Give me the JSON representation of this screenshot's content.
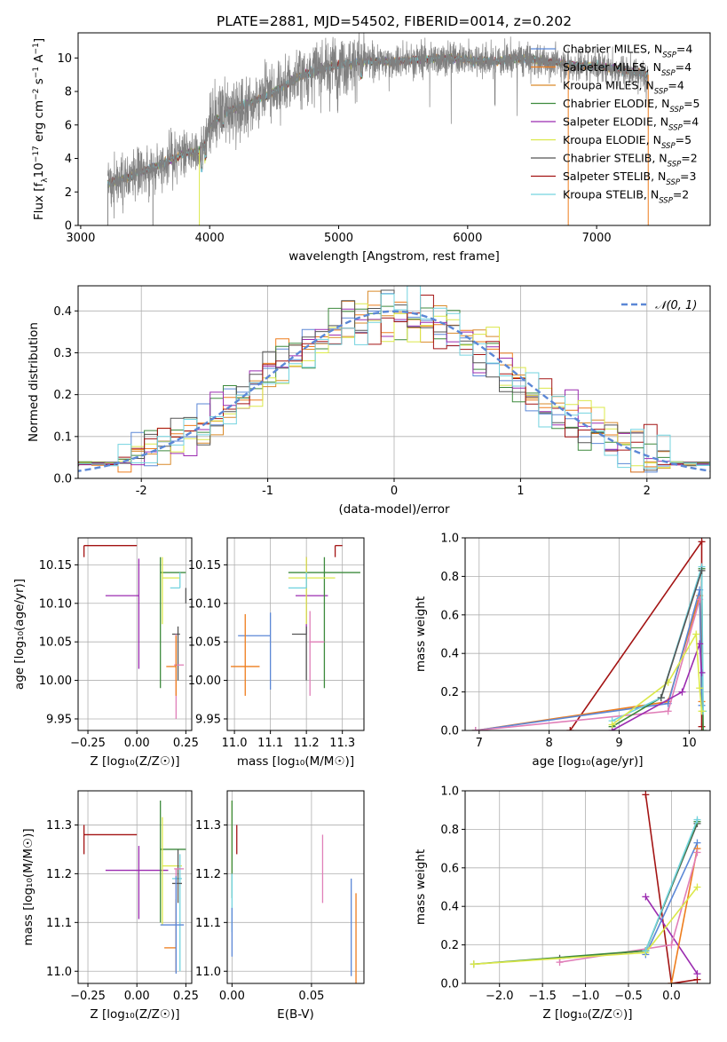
{
  "figure": {
    "title": "PLATE=2881, MJD=54502, FIBERID=0014, z=0.202"
  },
  "colors": {
    "Chabrier MILES": "#5b87d6",
    "Salpeter MILES": "#ee7d1d",
    "Kroupa MILES": "#d98a2a",
    "Chabrier ELODIE": "#3d8a3d",
    "Salpeter ELODIE": "#9b2bb0",
    "Kroupa ELODIE": "#dbe84a",
    "Chabrier STELIB": "#555555",
    "Salpeter STELIB": "#a31313",
    "Kroupa STELIB": "#73d3df",
    "Pink": "#e07fb8",
    "Normal curve": "#5b87d6"
  },
  "chart_data": [
    {
      "id": "spectrum",
      "type": "line",
      "title": "PLATE=2881, MJD=54502, FIBERID=0014, z=0.202",
      "xlabel": "wavelength [Angstrom, rest frame]",
      "ylabel_parts": [
        "Flux [f",
        "λ",
        "10",
        "−17",
        " erg cm",
        "−2",
        " s",
        "−1",
        " A",
        "−1",
        "]"
      ],
      "xlim": [
        2980,
        7880
      ],
      "ylim": [
        0,
        11.5
      ],
      "xticks": [
        3000,
        4000,
        5000,
        6000,
        7000
      ],
      "yticks": [
        0,
        2,
        4,
        6,
        8,
        10
      ],
      "legend_position": "upper-right",
      "legend": [
        {
          "label": "Chabrier MILES, N",
          "sub": "SSP",
          "suffix": "=4",
          "color": "#5b87d6"
        },
        {
          "label": "Salpeter MILES, N",
          "sub": "SSP",
          "suffix": "=4",
          "color": "#ee7d1d"
        },
        {
          "label": "Kroupa MILES, N",
          "sub": "SSP",
          "suffix": "=4",
          "color": "#d98a2a"
        },
        {
          "label": "Chabrier ELODIE, N",
          "sub": "SSP",
          "suffix": "=5",
          "color": "#3d8a3d"
        },
        {
          "label": "Salpeter ELODIE, N",
          "sub": "SSP",
          "suffix": "=4",
          "color": "#9b2bb0"
        },
        {
          "label": "Kroupa ELODIE, N",
          "sub": "SSP",
          "suffix": "=5",
          "color": "#dbe84a"
        },
        {
          "label": "Chabrier STELIB, N",
          "sub": "SSP",
          "suffix": "=2",
          "color": "#555555"
        },
        {
          "label": "Salpeter STELIB, N",
          "sub": "SSP",
          "suffix": "=3",
          "color": "#a31313"
        },
        {
          "label": "Kroupa STELIB, N",
          "sub": "SSP",
          "suffix": "=2",
          "color": "#73d3df"
        }
      ],
      "data_color": "#808080",
      "continuum": {
        "x": [
          3210,
          3300,
          3400,
          3500,
          3600,
          3700,
          3800,
          3900,
          3950,
          4000,
          4100,
          4200,
          4300,
          4400,
          4500,
          4600,
          4700,
          4800,
          4900,
          5000,
          5200,
          5400,
          5600,
          5800,
          6000,
          6200,
          6400,
          6600,
          6800,
          7000,
          7200,
          7400
        ],
        "y": [
          2.5,
          2.7,
          3.0,
          3.3,
          3.6,
          3.9,
          4.3,
          4.4,
          4.6,
          5.9,
          6.6,
          7.0,
          7.3,
          7.6,
          8.0,
          8.4,
          8.9,
          9.2,
          9.4,
          9.6,
          9.8,
          9.8,
          9.9,
          10.0,
          9.9,
          9.8,
          10.0,
          9.8,
          9.6,
          9.5,
          9.3,
          9.0
        ]
      }
    },
    {
      "id": "residuals",
      "type": "step",
      "xlabel": "(data-model)/error",
      "ylabel": "Normed distribution",
      "xlim": [
        -2.5,
        2.5
      ],
      "ylim": [
        0,
        0.46
      ],
      "xticks": [
        -2,
        -1,
        0,
        1,
        2
      ],
      "yticks": [
        0.0,
        0.1,
        0.2,
        0.3,
        0.4
      ],
      "legend_position": "upper-right",
      "normal_label": "𝒩(0, 1)",
      "normal_curve": {
        "mean": 0,
        "sigma": 1
      }
    },
    {
      "id": "age-vs-Z",
      "type": "errorbar",
      "xlabel": "Z [log₁₀(Z/Z☉)]",
      "ylabel": "age  [log₁₀(age/yr)]",
      "xlim": [
        -0.3,
        0.28
      ],
      "ylim": [
        9.935,
        10.185
      ],
      "xticks": [
        -0.25,
        0.0,
        0.25
      ],
      "xticklabels": [
        "−0.25",
        "0.00",
        "0.25"
      ],
      "yticks": [
        9.95,
        10.0,
        10.05,
        10.1,
        10.15
      ],
      "yticklabels": [
        "9.95",
        "10.00",
        "10.05",
        "10.10",
        "10.15"
      ],
      "points": [
        {
          "x": -0.27,
          "xerr": [
            0,
            0.27
          ],
          "y": 10.175,
          "yerr": [
            0.015,
            0.0
          ],
          "color": "#a31313"
        },
        {
          "x": 0.01,
          "xerr": [
            0.17,
            0.0
          ],
          "y": 10.11,
          "yerr": [
            0.095,
            0.048
          ],
          "color": "#9b2bb0"
        },
        {
          "x": 0.12,
          "xerr": [
            0.0,
            0.13
          ],
          "y": 10.14,
          "yerr": [
            0.15,
            0.02
          ],
          "color": "#3d8a3d"
        },
        {
          "x": 0.13,
          "xerr": [
            0.0,
            0.09
          ],
          "y": 10.133,
          "yerr": [
            0.06,
            0.027
          ],
          "color": "#dbe84a"
        },
        {
          "x": 0.22,
          "xerr": [
            0.05,
            0.0
          ],
          "y": 10.12,
          "yerr": [
            0.0,
            0.02
          ],
          "color": "#73d3df"
        },
        {
          "x": 0.21,
          "xerr": [
            0.03,
            0.01
          ],
          "y": 10.06,
          "yerr": [
            0.06,
            0.01
          ],
          "color": "#555555"
        },
        {
          "x": 0.2,
          "xerr": [
            0.01,
            0.04
          ],
          "y": 10.02,
          "yerr": [
            0.07,
            0.04
          ],
          "color": "#e07fb8"
        },
        {
          "x": 0.2,
          "xerr": [
            0.05,
            0.0
          ],
          "y": 10.018,
          "yerr": [
            0.038,
            0.04
          ],
          "color": "#ee7d1d"
        },
        {
          "x": 0.25,
          "xerr": [
            0.0,
            0.0
          ],
          "y": 10.12,
          "yerr": [
            0.02,
            0.0
          ],
          "color": "#555555"
        }
      ]
    },
    {
      "id": "age-vs-mass",
      "type": "errorbar",
      "xlabel": "mass [log₁₀(M/M☉)]",
      "xlim": [
        10.98,
        11.36
      ],
      "ylim": [
        9.935,
        10.185
      ],
      "xticks": [
        11.0,
        11.1,
        11.2,
        11.3
      ],
      "xticklabels": [
        "11.0",
        "11.1",
        "11.2",
        "11.3"
      ],
      "yticks": [
        9.95,
        10.0,
        10.05,
        10.1,
        10.15
      ],
      "yticklabels": [
        "9.95",
        "10.00",
        "10.05",
        "10.10",
        "10.15"
      ],
      "points": [
        {
          "x": 11.28,
          "xerr": [
            0.0,
            0.02
          ],
          "y": 10.175,
          "yerr": [
            0.015,
            0.0
          ],
          "color": "#a31313"
        },
        {
          "x": 11.2,
          "xerr": [
            0.03,
            0.06
          ],
          "y": 10.11,
          "yerr": [
            0.05,
            0.05
          ],
          "color": "#9b2bb0"
        },
        {
          "x": 11.25,
          "xerr": [
            0.1,
            0.1
          ],
          "y": 10.14,
          "yerr": [
            0.15,
            0.02
          ],
          "color": "#3d8a3d"
        },
        {
          "x": 11.2,
          "xerr": [
            0.05,
            0.08
          ],
          "y": 10.133,
          "yerr": [
            0.06,
            0.027
          ],
          "color": "#dbe84a"
        },
        {
          "x": 11.2,
          "xerr": [
            0.05,
            0.0
          ],
          "y": 10.12,
          "yerr": [
            0.0,
            0.02
          ],
          "color": "#73d3df"
        },
        {
          "x": 11.2,
          "xerr": [
            0.04,
            0.0
          ],
          "y": 10.06,
          "yerr": [
            0.06,
            0.01
          ],
          "color": "#555555"
        },
        {
          "x": 11.1,
          "xerr": [
            0.09,
            0.0
          ],
          "y": 10.058,
          "yerr": [
            0.07,
            0.03
          ],
          "color": "#5b87d6"
        },
        {
          "x": 11.21,
          "xerr": [
            0.0,
            0.04
          ],
          "y": 10.05,
          "yerr": [
            0.07,
            0.04
          ],
          "color": "#e07fb8"
        },
        {
          "x": 11.03,
          "xerr": [
            0.04,
            0.04
          ],
          "y": 10.018,
          "yerr": [
            0.038,
            0.068
          ],
          "color": "#ee7d1d"
        }
      ]
    },
    {
      "id": "weight-vs-age",
      "type": "line",
      "xlabel": "age  [log₁₀(age/yr)]",
      "ylabel": "mass weight",
      "xlim": [
        6.8,
        10.3
      ],
      "ylim": [
        0,
        1.0
      ],
      "xticks": [
        7,
        8,
        9,
        10
      ],
      "yticks": [
        0.0,
        0.2,
        0.4,
        0.6,
        0.8,
        1.0
      ],
      "series": [
        {
          "color": "#a31313",
          "x": [
            8.3,
            10.18,
            10.18
          ],
          "y": [
            0.0,
            0.98,
            0.02
          ]
        },
        {
          "color": "#ee7d1d",
          "x": [
            6.95,
            9.7,
            10.15,
            10.18
          ],
          "y": [
            0.0,
            0.15,
            0.7,
            0.15
          ]
        },
        {
          "color": "#5b87d6",
          "x": [
            6.95,
            9.7,
            10.15,
            10.18
          ],
          "y": [
            0.0,
            0.14,
            0.73,
            0.13
          ]
        },
        {
          "color": "#e07fb8",
          "x": [
            6.95,
            9.7,
            10.15
          ],
          "y": [
            0.0,
            0.1,
            0.68
          ]
        },
        {
          "color": "#3d8a3d",
          "x": [
            8.9,
            9.6,
            10.18,
            10.2
          ],
          "y": [
            0.02,
            0.17,
            0.84,
            0.0
          ]
        },
        {
          "color": "#73d3df",
          "x": [
            8.9,
            9.6,
            10.18,
            10.2
          ],
          "y": [
            0.05,
            0.17,
            0.85,
            0.1
          ]
        },
        {
          "color": "#9b2bb0",
          "x": [
            8.9,
            9.9,
            10.15,
            10.18
          ],
          "y": [
            0.0,
            0.2,
            0.45,
            0.3
          ]
        },
        {
          "color": "#dbe84a",
          "x": [
            8.9,
            9.7,
            10.1,
            10.15,
            10.18
          ],
          "y": [
            0.03,
            0.25,
            0.5,
            0.22,
            0.1
          ]
        },
        {
          "color": "#555555",
          "x": [
            9.6,
            10.18
          ],
          "y": [
            0.17,
            0.83
          ]
        }
      ]
    },
    {
      "id": "mass-vs-Z",
      "type": "errorbar",
      "xlabel": "Z [log₁₀(Z/Z☉)]",
      "ylabel": "mass [log₁₀(M/M☉)]",
      "xlim": [
        -0.3,
        0.28
      ],
      "ylim": [
        10.975,
        11.37
      ],
      "xticks": [
        -0.25,
        0.0,
        0.25
      ],
      "xticklabels": [
        "−0.25",
        "0.00",
        "0.25"
      ],
      "yticks": [
        11.0,
        11.1,
        11.2,
        11.3
      ],
      "yticklabels": [
        "11.0",
        "11.1",
        "11.2",
        "11.3"
      ],
      "points": [
        {
          "x": -0.27,
          "xerr": [
            0,
            0.27
          ],
          "y": 11.28,
          "yerr": [
            0.04,
            0.02
          ],
          "color": "#a31313"
        },
        {
          "x": 0.01,
          "xerr": [
            0.17,
            0.15
          ],
          "y": 11.207,
          "yerr": [
            0.1,
            0.05
          ],
          "color": "#9b2bb0"
        },
        {
          "x": 0.12,
          "xerr": [
            0.0,
            0.13
          ],
          "y": 11.25,
          "yerr": [
            0.15,
            0.1
          ],
          "color": "#3d8a3d"
        },
        {
          "x": 0.13,
          "xerr": [
            0.0,
            0.1
          ],
          "y": 11.216,
          "yerr": [
            0.12,
            0.1
          ],
          "color": "#dbe84a"
        },
        {
          "x": 0.22,
          "xerr": [
            0.04,
            0.01
          ],
          "y": 11.19,
          "yerr": [
            0.19,
            0.05
          ],
          "color": "#73d3df"
        },
        {
          "x": 0.21,
          "xerr": [
            0.03,
            0.02
          ],
          "y": 11.18,
          "yerr": [
            0.04,
            0.07
          ],
          "color": "#555555"
        },
        {
          "x": 0.2,
          "xerr": [
            0.01,
            0.04
          ],
          "y": 11.21,
          "yerr": [
            0.21,
            0.0
          ],
          "color": "#e07fb8"
        },
        {
          "x": 0.2,
          "xerr": [
            0.06,
            0.0
          ],
          "y": 11.048,
          "yerr": [
            0.05,
            0.1
          ],
          "color": "#ee7d1d"
        },
        {
          "x": 0.2,
          "xerr": [
            0.08,
            0.04
          ],
          "y": 11.095,
          "yerr": [
            0.1,
            0.1
          ],
          "color": "#5b87d6"
        }
      ]
    },
    {
      "id": "mass-vs-ebv",
      "type": "errorbar",
      "xlabel": "E(B-V)",
      "xlim": [
        -0.003,
        0.083
      ],
      "ylim": [
        10.975,
        11.37
      ],
      "xticks": [
        0.0,
        0.05
      ],
      "xticklabels": [
        "0.00",
        "0.05"
      ],
      "yticks": [
        11.0,
        11.1,
        11.2,
        11.3
      ],
      "yticklabels": [
        "11.0",
        "11.1",
        "11.2",
        "11.3"
      ],
      "points": [
        {
          "x": 0.0,
          "xerr": [
            0,
            0
          ],
          "y": 11.3,
          "yerr": [
            0.1,
            0.05
          ],
          "color": "#dbe84a"
        },
        {
          "x": 0.0,
          "xerr": [
            0,
            0
          ],
          "y": 11.25,
          "yerr": [
            0.1,
            0.1
          ],
          "color": "#3d8a3d"
        },
        {
          "x": 0.003,
          "xerr": [
            0,
            0
          ],
          "y": 11.28,
          "yerr": [
            0.04,
            0.02
          ],
          "color": "#a31313"
        },
        {
          "x": 0.0,
          "xerr": [
            0,
            0
          ],
          "y": 11.2,
          "yerr": [
            0.12,
            0.0
          ],
          "color": "#73d3df"
        },
        {
          "x": 0.0,
          "xerr": [
            0,
            0
          ],
          "y": 11.13,
          "yerr": [
            0.1,
            0.0
          ],
          "color": "#5b87d6"
        },
        {
          "x": 0.057,
          "xerr": [
            0,
            0
          ],
          "y": 11.21,
          "yerr": [
            0.07,
            0.07
          ],
          "color": "#e07fb8"
        },
        {
          "x": 0.075,
          "xerr": [
            0,
            0
          ],
          "y": 11.09,
          "yerr": [
            0.1,
            0.1
          ],
          "color": "#5b87d6"
        },
        {
          "x": 0.078,
          "xerr": [
            0,
            0
          ],
          "y": 11.05,
          "yerr": [
            0.1,
            0.11
          ],
          "color": "#ee7d1d"
        }
      ]
    },
    {
      "id": "weight-vs-Z",
      "type": "line",
      "xlabel": "Z [log₁₀(Z/Z☉)]",
      "ylabel": "mass weight",
      "xlim": [
        -2.4,
        0.45
      ],
      "ylim": [
        0,
        1.0
      ],
      "xticks": [
        -2.0,
        -1.5,
        -1.0,
        -0.5,
        0.0
      ],
      "xticklabels": [
        "−2.0",
        "−1.5",
        "−1.0",
        "−0.5",
        "0.0"
      ],
      "yticks": [
        0.0,
        0.2,
        0.4,
        0.6,
        0.8,
        1.0
      ],
      "series": [
        {
          "color": "#a31313",
          "x": [
            -0.3,
            0.0,
            0.3
          ],
          "y": [
            0.98,
            0.0,
            0.02
          ]
        },
        {
          "color": "#9b2bb0",
          "x": [
            -0.3,
            0.3
          ],
          "y": [
            0.45,
            0.05
          ]
        },
        {
          "color": "#555555",
          "x": [
            -1.3,
            -0.3,
            0.3
          ],
          "y": [
            0.13,
            0.17,
            0.83
          ]
        },
        {
          "color": "#5b87d6",
          "x": [
            -0.3,
            0.3
          ],
          "y": [
            0.15,
            0.73
          ]
        },
        {
          "color": "#ee7d1d",
          "x": [
            0.0,
            0.3
          ],
          "y": [
            0.0,
            0.7
          ]
        },
        {
          "color": "#e07fb8",
          "x": [
            -1.3,
            0.0,
            0.3
          ],
          "y": [
            0.11,
            0.2,
            0.68
          ]
        },
        {
          "color": "#3d8a3d",
          "x": [
            -2.3,
            -0.3,
            0.3
          ],
          "y": [
            0.1,
            0.17,
            0.84
          ]
        },
        {
          "color": "#dbe84a",
          "x": [
            -2.3,
            -0.3,
            0.3
          ],
          "y": [
            0.1,
            0.16,
            0.5
          ]
        },
        {
          "color": "#73d3df",
          "x": [
            -0.3,
            0.3
          ],
          "y": [
            0.17,
            0.85
          ]
        }
      ]
    }
  ]
}
